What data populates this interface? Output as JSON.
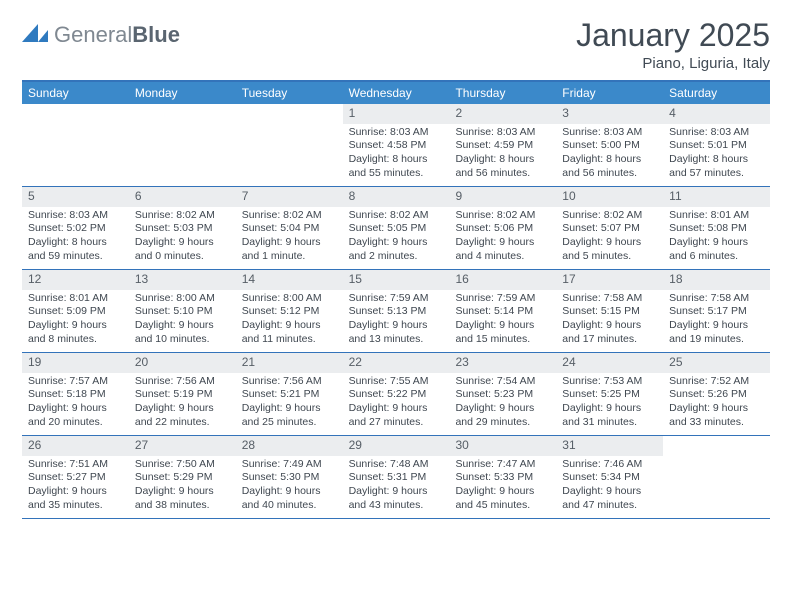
{
  "logo": {
    "text1": "General",
    "text2": "Blue"
  },
  "title": "January 2025",
  "location": "Piano, Liguria, Italy",
  "colors": {
    "header_bg": "#3b89ca",
    "header_border_top": "#3373ba",
    "row_border": "#3373ba",
    "daynum_bg": "#ebedef",
    "text": "#3f4750",
    "title_text": "#404a54",
    "logo_gray": "#7f8891",
    "logo_icon": "#2f7abf"
  },
  "day_names": [
    "Sunday",
    "Monday",
    "Tuesday",
    "Wednesday",
    "Thursday",
    "Friday",
    "Saturday"
  ],
  "layout": {
    "first_weekday_index": 3,
    "days_in_month": 31
  },
  "days": {
    "1": {
      "sunrise": "8:03 AM",
      "sunset": "4:58 PM",
      "daylight": "8 hours and 55 minutes."
    },
    "2": {
      "sunrise": "8:03 AM",
      "sunset": "4:59 PM",
      "daylight": "8 hours and 56 minutes."
    },
    "3": {
      "sunrise": "8:03 AM",
      "sunset": "5:00 PM",
      "daylight": "8 hours and 56 minutes."
    },
    "4": {
      "sunrise": "8:03 AM",
      "sunset": "5:01 PM",
      "daylight": "8 hours and 57 minutes."
    },
    "5": {
      "sunrise": "8:03 AM",
      "sunset": "5:02 PM",
      "daylight": "8 hours and 59 minutes."
    },
    "6": {
      "sunrise": "8:02 AM",
      "sunset": "5:03 PM",
      "daylight": "9 hours and 0 minutes."
    },
    "7": {
      "sunrise": "8:02 AM",
      "sunset": "5:04 PM",
      "daylight": "9 hours and 1 minute."
    },
    "8": {
      "sunrise": "8:02 AM",
      "sunset": "5:05 PM",
      "daylight": "9 hours and 2 minutes."
    },
    "9": {
      "sunrise": "8:02 AM",
      "sunset": "5:06 PM",
      "daylight": "9 hours and 4 minutes."
    },
    "10": {
      "sunrise": "8:02 AM",
      "sunset": "5:07 PM",
      "daylight": "9 hours and 5 minutes."
    },
    "11": {
      "sunrise": "8:01 AM",
      "sunset": "5:08 PM",
      "daylight": "9 hours and 6 minutes."
    },
    "12": {
      "sunrise": "8:01 AM",
      "sunset": "5:09 PM",
      "daylight": "9 hours and 8 minutes."
    },
    "13": {
      "sunrise": "8:00 AM",
      "sunset": "5:10 PM",
      "daylight": "9 hours and 10 minutes."
    },
    "14": {
      "sunrise": "8:00 AM",
      "sunset": "5:12 PM",
      "daylight": "9 hours and 11 minutes."
    },
    "15": {
      "sunrise": "7:59 AM",
      "sunset": "5:13 PM",
      "daylight": "9 hours and 13 minutes."
    },
    "16": {
      "sunrise": "7:59 AM",
      "sunset": "5:14 PM",
      "daylight": "9 hours and 15 minutes."
    },
    "17": {
      "sunrise": "7:58 AM",
      "sunset": "5:15 PM",
      "daylight": "9 hours and 17 minutes."
    },
    "18": {
      "sunrise": "7:58 AM",
      "sunset": "5:17 PM",
      "daylight": "9 hours and 19 minutes."
    },
    "19": {
      "sunrise": "7:57 AM",
      "sunset": "5:18 PM",
      "daylight": "9 hours and 20 minutes."
    },
    "20": {
      "sunrise": "7:56 AM",
      "sunset": "5:19 PM",
      "daylight": "9 hours and 22 minutes."
    },
    "21": {
      "sunrise": "7:56 AM",
      "sunset": "5:21 PM",
      "daylight": "9 hours and 25 minutes."
    },
    "22": {
      "sunrise": "7:55 AM",
      "sunset": "5:22 PM",
      "daylight": "9 hours and 27 minutes."
    },
    "23": {
      "sunrise": "7:54 AM",
      "sunset": "5:23 PM",
      "daylight": "9 hours and 29 minutes."
    },
    "24": {
      "sunrise": "7:53 AM",
      "sunset": "5:25 PM",
      "daylight": "9 hours and 31 minutes."
    },
    "25": {
      "sunrise": "7:52 AM",
      "sunset": "5:26 PM",
      "daylight": "9 hours and 33 minutes."
    },
    "26": {
      "sunrise": "7:51 AM",
      "sunset": "5:27 PM",
      "daylight": "9 hours and 35 minutes."
    },
    "27": {
      "sunrise": "7:50 AM",
      "sunset": "5:29 PM",
      "daylight": "9 hours and 38 minutes."
    },
    "28": {
      "sunrise": "7:49 AM",
      "sunset": "5:30 PM",
      "daylight": "9 hours and 40 minutes."
    },
    "29": {
      "sunrise": "7:48 AM",
      "sunset": "5:31 PM",
      "daylight": "9 hours and 43 minutes."
    },
    "30": {
      "sunrise": "7:47 AM",
      "sunset": "5:33 PM",
      "daylight": "9 hours and 45 minutes."
    },
    "31": {
      "sunrise": "7:46 AM",
      "sunset": "5:34 PM",
      "daylight": "9 hours and 47 minutes."
    }
  },
  "labels": {
    "sunrise": "Sunrise:",
    "sunset": "Sunset:",
    "daylight": "Daylight:"
  }
}
